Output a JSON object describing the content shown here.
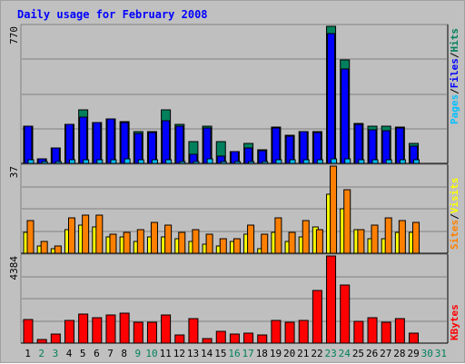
{
  "title": "Daily usage for February 2008",
  "colors": {
    "background": "#c0c0c0",
    "plot": "#bfbfbf",
    "title": "#0000ff",
    "hits": "#00805c",
    "files": "#0000ff",
    "pages": "#00c0ff",
    "visits": "#ffff00",
    "sites": "#ff8000",
    "kbytes": "#ff0000",
    "weekday_label": "#000000",
    "weekend_label": "#00805c"
  },
  "chart_data": [
    {
      "type": "bar",
      "panel": "hits-files-pages",
      "ymax_label": "770",
      "ylim": [
        0,
        770
      ],
      "legend": [
        "Pages",
        "Files",
        "Hits"
      ],
      "categories": [
        "1",
        "2",
        "3",
        "4",
        "5",
        "6",
        "7",
        "8",
        "9",
        "10",
        "11",
        "12",
        "13",
        "14",
        "15",
        "16",
        "17",
        "18",
        "19",
        "20",
        "21",
        "22",
        "23",
        "24",
        "25",
        "26",
        "27",
        "28",
        "29",
        "30",
        "31"
      ],
      "series": [
        {
          "name": "Hits",
          "values": [
            210,
            28,
            88,
            220,
            300,
            232,
            250,
            236,
            178,
            180,
            300,
            218,
            120,
            210,
            120,
            66,
            110,
            75,
            206,
            160,
            180,
            178,
            770,
            580,
            225,
            210,
            210,
            206,
            110,
            0,
            0
          ]
        },
        {
          "name": "Files",
          "values": [
            210,
            25,
            88,
            220,
            262,
            228,
            250,
            232,
            170,
            175,
            240,
            210,
            50,
            200,
            40,
            66,
            85,
            70,
            200,
            155,
            176,
            175,
            730,
            530,
            220,
            190,
            185,
            198,
            95,
            0,
            0
          ]
        },
        {
          "name": "Pages",
          "values": [
            20,
            8,
            10,
            20,
            20,
            20,
            20,
            28,
            20,
            20,
            20,
            12,
            10,
            25,
            10,
            8,
            10,
            10,
            20,
            20,
            20,
            20,
            28,
            28,
            20,
            20,
            20,
            20,
            20,
            0,
            0
          ]
        }
      ]
    },
    {
      "type": "bar",
      "panel": "visits-sites",
      "ymax_label": "37",
      "ylim": [
        0,
        37
      ],
      "legend": [
        "Sites",
        "Visits"
      ],
      "categories": [
        "1",
        "2",
        "3",
        "4",
        "5",
        "6",
        "7",
        "8",
        "9",
        "10",
        "11",
        "12",
        "13",
        "14",
        "15",
        "16",
        "17",
        "18",
        "19",
        "20",
        "21",
        "22",
        "23",
        "24",
        "25",
        "26",
        "27",
        "28",
        "29",
        "30",
        "31"
      ],
      "series": [
        {
          "name": "Visits",
          "values": [
            9,
            3,
            2,
            10,
            12,
            11,
            7,
            7,
            5,
            7,
            7,
            6,
            5,
            4,
            3,
            5,
            8,
            2,
            9,
            5,
            7,
            11,
            25,
            19,
            10,
            6,
            6,
            9,
            9,
            0,
            0
          ]
        },
        {
          "name": "Sites",
          "values": [
            14,
            5,
            3,
            15,
            16,
            16,
            8,
            9,
            10,
            13,
            12,
            9,
            10,
            8,
            6,
            6,
            12,
            8,
            15,
            9,
            14,
            10,
            37,
            27,
            10,
            12,
            15,
            14,
            13,
            0,
            0
          ]
        }
      ]
    },
    {
      "type": "bar",
      "panel": "kbytes",
      "ymax_label": "4384",
      "ylim": [
        0,
        4384
      ],
      "legend": [
        "KBytes"
      ],
      "categories": [
        "1",
        "2",
        "3",
        "4",
        "5",
        "6",
        "7",
        "8",
        "9",
        "10",
        "11",
        "12",
        "13",
        "14",
        "15",
        "16",
        "17",
        "18",
        "19",
        "20",
        "21",
        "22",
        "23",
        "24",
        "25",
        "26",
        "27",
        "28",
        "29",
        "30",
        "31"
      ],
      "series": [
        {
          "name": "KBytes",
          "values": [
            1200,
            200,
            450,
            1150,
            1450,
            1300,
            1400,
            1500,
            1060,
            1050,
            1400,
            400,
            1250,
            210,
            600,
            450,
            490,
            400,
            1150,
            1030,
            1150,
            2650,
            4384,
            2900,
            1100,
            1300,
            1050,
            1250,
            510,
            0,
            0
          ]
        }
      ]
    }
  ],
  "day_labels": [
    {
      "label": "1",
      "weekend": false
    },
    {
      "label": "2",
      "weekend": true
    },
    {
      "label": "3",
      "weekend": true
    },
    {
      "label": "4",
      "weekend": false
    },
    {
      "label": "5",
      "weekend": false
    },
    {
      "label": "6",
      "weekend": false
    },
    {
      "label": "7",
      "weekend": false
    },
    {
      "label": "8",
      "weekend": false
    },
    {
      "label": "9",
      "weekend": true
    },
    {
      "label": "10",
      "weekend": true
    },
    {
      "label": "11",
      "weekend": false
    },
    {
      "label": "12",
      "weekend": false
    },
    {
      "label": "13",
      "weekend": false
    },
    {
      "label": "14",
      "weekend": false
    },
    {
      "label": "15",
      "weekend": false
    },
    {
      "label": "16",
      "weekend": true
    },
    {
      "label": "17",
      "weekend": true
    },
    {
      "label": "18",
      "weekend": false
    },
    {
      "label": "19",
      "weekend": false
    },
    {
      "label": "20",
      "weekend": false
    },
    {
      "label": "21",
      "weekend": false
    },
    {
      "label": "22",
      "weekend": false
    },
    {
      "label": "23",
      "weekend": true
    },
    {
      "label": "24",
      "weekend": true
    },
    {
      "label": "25",
      "weekend": false
    },
    {
      "label": "26",
      "weekend": false
    },
    {
      "label": "27",
      "weekend": false
    },
    {
      "label": "28",
      "weekend": false
    },
    {
      "label": "29",
      "weekend": false
    },
    {
      "label": "30",
      "weekend": true
    },
    {
      "label": "31",
      "weekend": true
    }
  ]
}
